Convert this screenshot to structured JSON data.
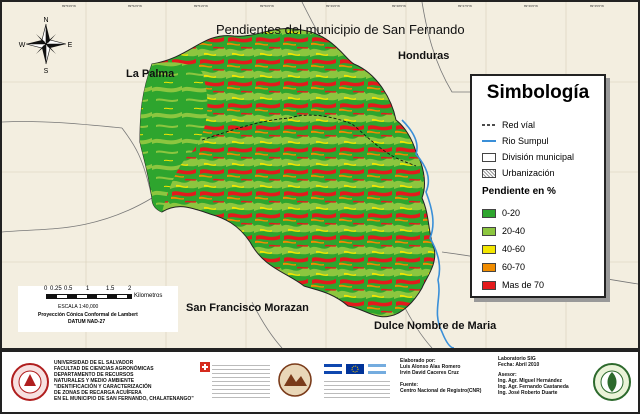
{
  "map": {
    "title": "Pendientes del municipio de San Fernando",
    "neighbors": {
      "la_palma": "La Palma",
      "honduras": "Honduras",
      "san_francisco": "San Francisco Morazan",
      "dulce_nombre": "Dulce Nombre de Maria"
    },
    "coord_ticks": [
      "89°53'0\"W",
      "89°52'0\"W",
      "89°51'0\"W",
      "89°50'0\"W",
      "89°49'0\"W",
      "89°48'0\"W",
      "89°47'0\"W",
      "89°46'0\"W",
      "89°45'0\"W"
    ]
  },
  "legend": {
    "title": "Simbología",
    "items": [
      {
        "label": "Red víal",
        "symbol": "dashed-line",
        "color": "#111111"
      },
      {
        "label": "Rio Sumpul",
        "symbol": "line",
        "color": "#3a8fd8"
      },
      {
        "label": "División municipal",
        "symbol": "box",
        "color": "#ffffff"
      },
      {
        "label": "Urbanización",
        "symbol": "hatched-box",
        "color": "#ffffff"
      }
    ],
    "slope_title": "Pendiente en %",
    "classes": [
      {
        "label": "0-20",
        "color": "#2ea52e"
      },
      {
        "label": "20-40",
        "color": "#8cc63f"
      },
      {
        "label": "40-60",
        "color": "#f3e600"
      },
      {
        "label": "60-70",
        "color": "#f08c00"
      },
      {
        "label": "Mas de 70",
        "color": "#e31a1c"
      }
    ]
  },
  "scale": {
    "numbers": [
      "0",
      "0.25",
      "0.5",
      "1",
      "1.5",
      "2"
    ],
    "unit": "Kilometros",
    "escala": "ESCALA   1:40,000",
    "projection": "Proyección Cónica Conformal de Lambert",
    "datum": "DATUM NAD-27"
  },
  "footer": {
    "university": "UNIVERSIDAD DE EL SALVADOR\nFACULTAD DE CIENCIAS AGRONÓMICAS\nDEPARTAMENTO DE RECURSOS\nNATURALES Y MEDIO AMBIENTE\n\"IDENTIFICACIÓN Y CARACTERIZACIÓN\nDE ZONAS DE RECARGA ACUÍFERA\nEN EL MUNICIPIO DE SAN FERNANDO, CHALATENANGO\"",
    "elaborado_label": "Elaborado por:",
    "elaborado": "Luis Alonso Alas Romero\nIrvin David Caceres Cruz",
    "fuente_label": "Fuente:",
    "fuente": "Centro Nacional de Registro(CNR)",
    "lab": "Laboratorio SIG\nFecha: Abril 2010",
    "asesor_label": "Asesor:",
    "asesores": "Ing. Agr. Miguel Hernández\nIng. Agr. Fernando Castaneda\nIng. José Roberto Duarte"
  },
  "colors": {
    "green": "#2ea52e",
    "lightgreen": "#8cc63f",
    "yellow": "#f3e600",
    "orange": "#f08c00",
    "red": "#e31a1c",
    "river": "#3a8fd8",
    "land": "#f3eee0"
  }
}
